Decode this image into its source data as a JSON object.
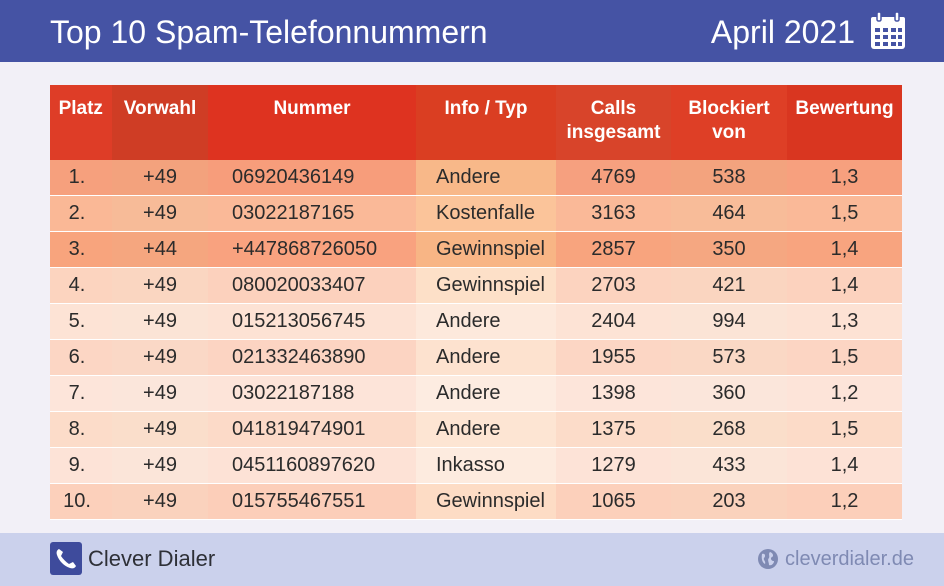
{
  "header": {
    "title": "Top 10 Spam-Telefonnummern",
    "date": "April 2021",
    "date_icon": "calendar-icon"
  },
  "chart_data": {
    "type": "table",
    "columns": [
      "Platz",
      "Vorwahl",
      "Nummer",
      "Info / Typ",
      "Calls insgesamt",
      "Blockiert von",
      "Bewertung"
    ],
    "header_lines": {
      "calls": [
        "Calls",
        "insgesamt"
      ],
      "blocked": [
        "Blockiert",
        "von"
      ]
    },
    "rows": [
      {
        "platz": "1.",
        "vorwahl": "+49",
        "nummer": "06920436149",
        "typ": "Andere",
        "calls": "4769",
        "blockiert": "538",
        "bewertung": "1,3"
      },
      {
        "platz": "2.",
        "vorwahl": "+49",
        "nummer": "03022187165",
        "typ": "Kostenfalle",
        "calls": "3163",
        "blockiert": "464",
        "bewertung": "1,5"
      },
      {
        "platz": "3.",
        "vorwahl": "+44",
        "nummer": "+447868726050",
        "typ": "Gewinnspiel",
        "calls": "2857",
        "blockiert": "350",
        "bewertung": "1,4"
      },
      {
        "platz": "4.",
        "vorwahl": "+49",
        "nummer": "080020033407",
        "typ": "Gewinnspiel",
        "calls": "2703",
        "blockiert": "421",
        "bewertung": "1,4"
      },
      {
        "platz": "5.",
        "vorwahl": "+49",
        "nummer": "015213056745",
        "typ": "Andere",
        "calls": "2404",
        "blockiert": "994",
        "bewertung": "1,3"
      },
      {
        "platz": "6.",
        "vorwahl": "+49",
        "nummer": "021332463890",
        "typ": "Andere",
        "calls": "1955",
        "blockiert": "573",
        "bewertung": "1,5"
      },
      {
        "platz": "7.",
        "vorwahl": "+49",
        "nummer": "03022187188",
        "typ": "Andere",
        "calls": "1398",
        "blockiert": "360",
        "bewertung": "1,2"
      },
      {
        "platz": "8.",
        "vorwahl": "+49",
        "nummer": "041819474901",
        "typ": "Andere",
        "calls": "1375",
        "blockiert": "268",
        "bewertung": "1,5"
      },
      {
        "platz": "9.",
        "vorwahl": "+49",
        "nummer": "0451160897620",
        "typ": "Inkasso",
        "calls": "1279",
        "blockiert": "433",
        "bewertung": "1,4"
      },
      {
        "platz": "10.",
        "vorwahl": "+49",
        "nummer": "015755467551",
        "typ": "Gewinnspiel",
        "calls": "1065",
        "blockiert": "203",
        "bewertung": "1,2"
      }
    ]
  },
  "colors": {
    "header_bg": "#4553a4",
    "footer_bg": "#cbd1ec",
    "page_bg": "#f2f0f7",
    "column_header": [
      "#de3d27",
      "#cf3d25",
      "#de3320",
      "#da3e22",
      "#d8442a",
      "#de3f26",
      "#d93620"
    ],
    "row_colors": [
      [
        "#f6a07d",
        "#f3a27d",
        "#f79d7b",
        "#f8b889",
        "#f6a07f",
        "#f3a37e",
        "#f7a07e"
      ],
      [
        "#fab896",
        "#f7bb98",
        "#fab998",
        "#fbc49a",
        "#fab998",
        "#f8bc99",
        "#fab998"
      ],
      [
        "#f8a47d",
        "#f5a67f",
        "#f9a27f",
        "#f8b585",
        "#f8a47e",
        "#f5a781",
        "#f8a47f"
      ],
      [
        "#fcd4bf",
        "#fad6c1",
        "#fcd1bd",
        "#fde0c8",
        "#fcd3bf",
        "#fad5c0",
        "#fcd2be"
      ],
      [
        "#fde3d5",
        "#fbe4d6",
        "#fde2d4",
        "#fde9dc",
        "#fde3d5",
        "#fbe4d6",
        "#fde2d4"
      ],
      [
        "#fcd6c4",
        "#fad8c6",
        "#fcd4c2",
        "#fde2cf",
        "#fcd6c4",
        "#fad8c5",
        "#fcd5c3"
      ],
      [
        "#fde5da",
        "#fbe6db",
        "#fde4d9",
        "#fdece1",
        "#fde5da",
        "#fbe6db",
        "#fde4d9"
      ],
      [
        "#fcdcc9",
        "#fadecb",
        "#fcdac8",
        "#fde5d3",
        "#fcdcc9",
        "#fadeca",
        "#fcdbc8"
      ],
      [
        "#fde3d7",
        "#fbe5d9",
        "#fde2d6",
        "#fdebdf",
        "#fde3d7",
        "#fbe5d8",
        "#fde2d6"
      ],
      [
        "#fcd0bb",
        "#fad2bd",
        "#fcceb9",
        "#fddcc5",
        "#fcd0bb",
        "#fad2bc",
        "#fccfba"
      ]
    ]
  },
  "footer": {
    "brand": "Clever Dialer",
    "brand_icon": "phone-icon",
    "url": "cleverdialer.de",
    "url_icon": "globe-icon"
  }
}
